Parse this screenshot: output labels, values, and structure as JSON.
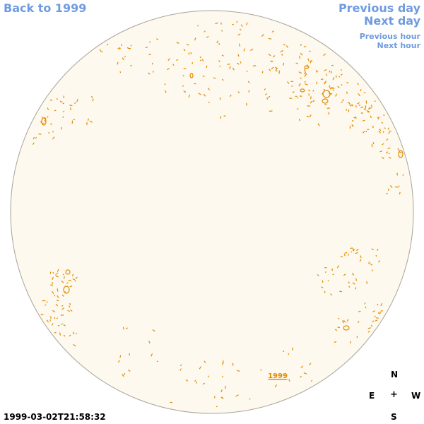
{
  "nav": {
    "back_label": "Back to 1999",
    "prev_day_label": "Previous day",
    "next_day_label": "Next day",
    "prev_hour_label": "Previous hour",
    "next_hour_label": "Next hour"
  },
  "disk": {
    "year_label": "1999",
    "fill_color": "#fdf9ee",
    "limb_color": "#a8a39a",
    "contour_color": "#e38a00"
  },
  "compass": {
    "n": "N",
    "e": "E",
    "center": "+",
    "w": "W",
    "s": "S"
  },
  "timestamp": "1999-03-02T21:58:32",
  "colors": {
    "link": "#6f9be0",
    "text": "#000000"
  }
}
